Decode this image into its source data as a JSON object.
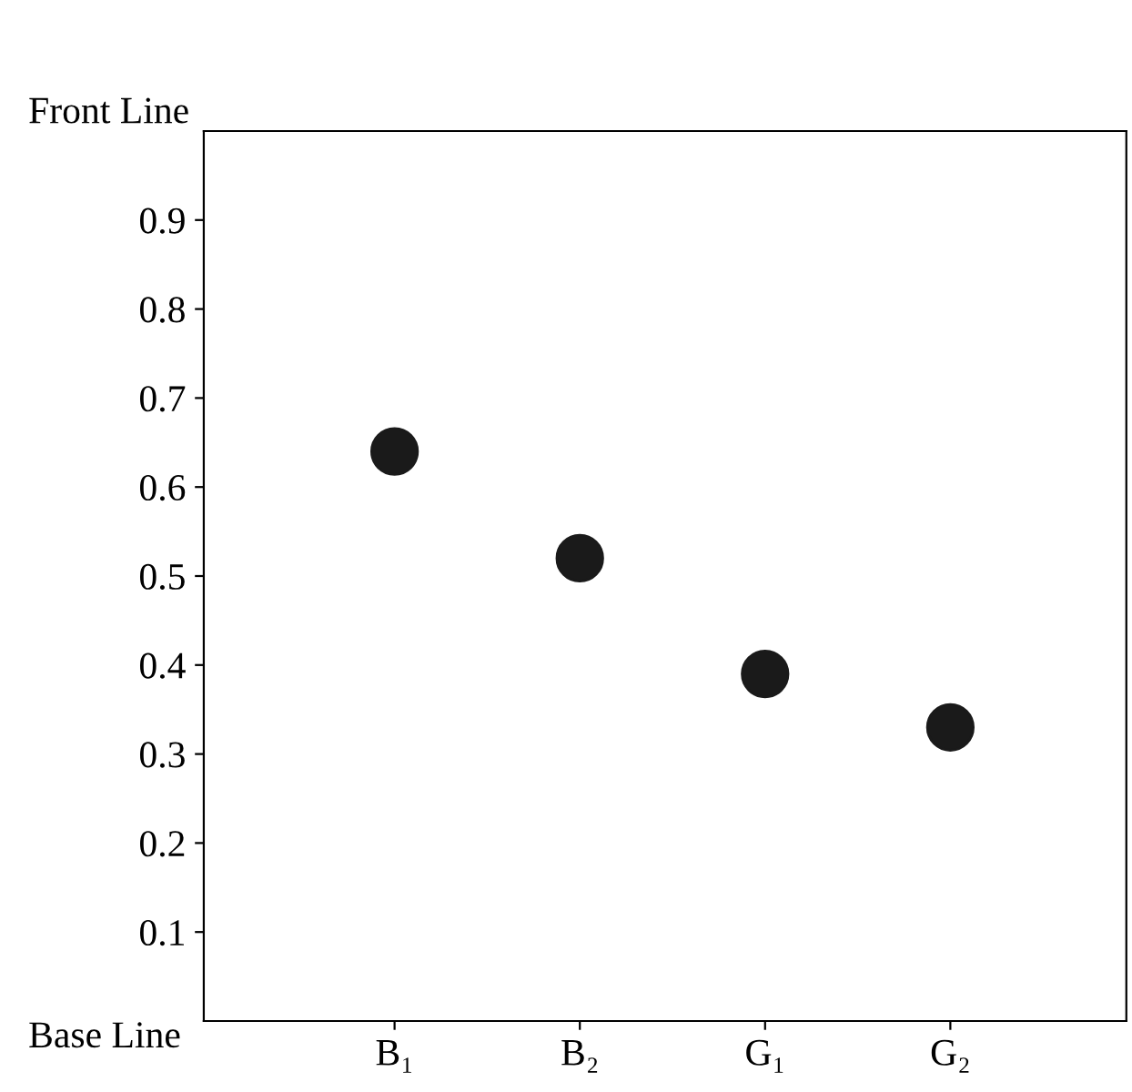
{
  "chart_data": {
    "type": "scatter",
    "categories": [
      "B₁",
      "B₂",
      "G₁",
      "G₂"
    ],
    "series": [
      {
        "color": "#1a1a1a",
        "values": [
          0.64,
          0.52,
          0.39,
          0.33
        ]
      }
    ],
    "ylim": [
      0,
      1
    ],
    "yticks": [
      0.1,
      0.2,
      0.3,
      0.4,
      0.5,
      0.6,
      0.7,
      0.8,
      0.9
    ],
    "annotations": [
      "Front Line",
      "Base Line"
    ],
    "marker": "circle",
    "grid": false,
    "legend": false
  }
}
